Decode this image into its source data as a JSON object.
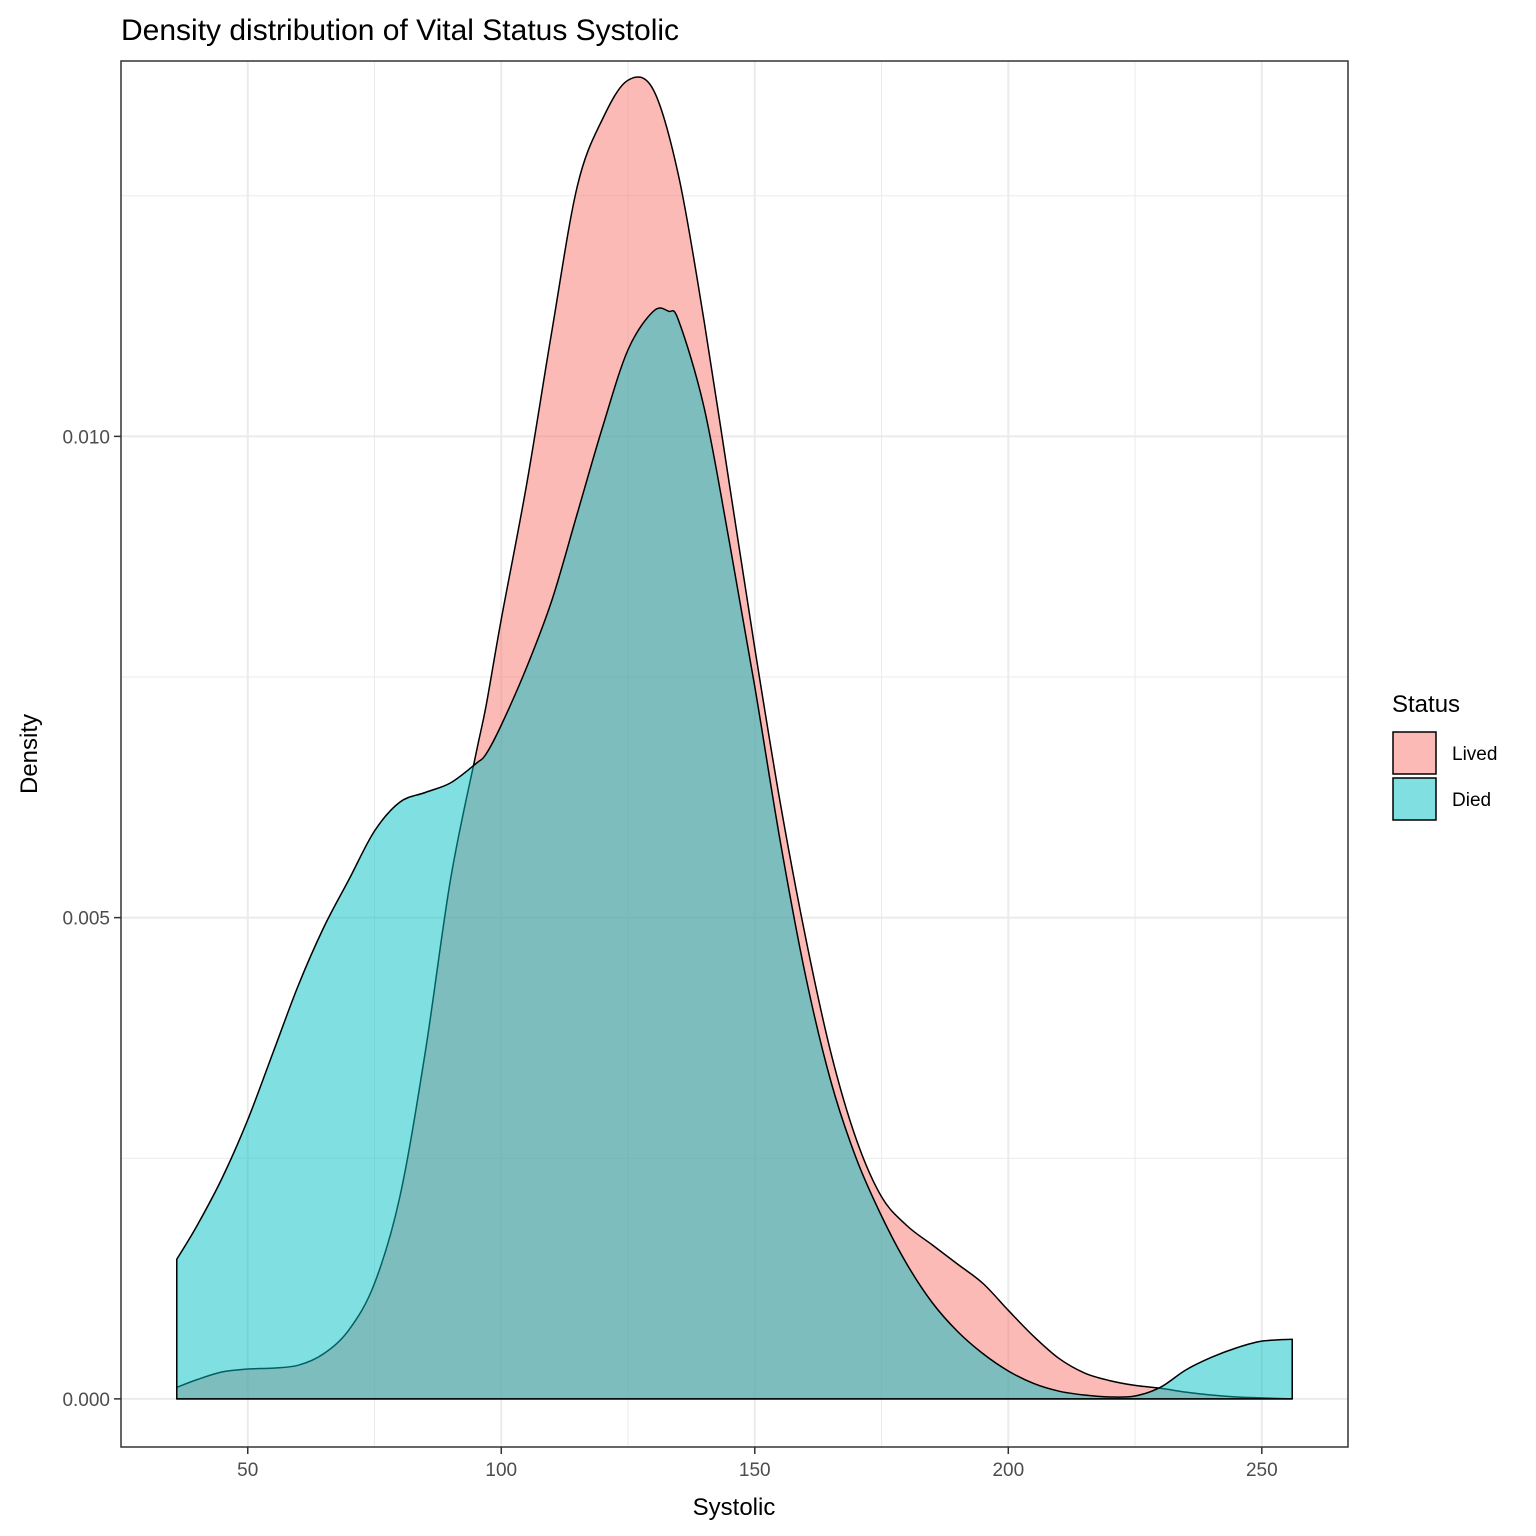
{
  "chart_data": {
    "type": "area",
    "title": "Density distribution of Vital Status Systolic",
    "xlabel": "Systolic",
    "ylabel": "Density",
    "xlim": [
      25,
      267
    ],
    "ylim": [
      -0.0005,
      0.0139
    ],
    "x_ticks": [
      50,
      100,
      150,
      200,
      250
    ],
    "x_tick_labels": [
      "50",
      "100",
      "150",
      "200",
      "250"
    ],
    "y_ticks": [
      0,
      0.005,
      0.01
    ],
    "y_tick_labels": [
      "0.000",
      "0.005",
      "0.010"
    ],
    "grid": true,
    "legend": {
      "title": "Status",
      "position": "right"
    },
    "series": [
      {
        "name": "Lived",
        "color": "#F8766D",
        "x": [
          36,
          40,
          45,
          50,
          55,
          60,
          65,
          70,
          75,
          80,
          85,
          90,
          95,
          97,
          100,
          105,
          110,
          115,
          120,
          125,
          130,
          135,
          140,
          145,
          150,
          155,
          160,
          165,
          170,
          175,
          180,
          185,
          190,
          195,
          200,
          205,
          210,
          215,
          220,
          225,
          230,
          235,
          240,
          245,
          250,
          256
        ],
        "y": [
          0.00012,
          0.0002,
          0.00028,
          0.00031,
          0.00032,
          0.00035,
          0.00047,
          0.00072,
          0.0012,
          0.0021,
          0.0036,
          0.0054,
          0.0067,
          0.0072,
          0.0081,
          0.0095,
          0.0111,
          0.0126,
          0.0133,
          0.0137,
          0.0136,
          0.0127,
          0.0112,
          0.0095,
          0.0078,
          0.0062,
          0.0048,
          0.0036,
          0.0027,
          0.0021,
          0.0018,
          0.0016,
          0.0014,
          0.0012,
          0.00092,
          0.00065,
          0.00042,
          0.00027,
          0.00019,
          0.00014,
          0.00011,
          7e-05,
          4e-05,
          2e-05,
          1e-05,
          0.0
        ]
      },
      {
        "name": "Died",
        "color": "#00BFC4",
        "x": [
          36,
          40,
          45,
          50,
          55,
          60,
          65,
          70,
          75,
          80,
          85,
          90,
          95,
          97,
          100,
          105,
          110,
          115,
          120,
          125,
          130,
          133,
          135,
          140,
          145,
          150,
          155,
          160,
          165,
          170,
          175,
          180,
          185,
          190,
          195,
          200,
          205,
          210,
          215,
          220,
          225,
          230,
          235,
          240,
          245,
          250,
          256
        ],
        "y": [
          0.00145,
          0.0018,
          0.0023,
          0.0029,
          0.0036,
          0.0043,
          0.0049,
          0.0054,
          0.0059,
          0.0062,
          0.0063,
          0.0064,
          0.0066,
          0.0067,
          0.007,
          0.0076,
          0.0083,
          0.0092,
          0.0101,
          0.0109,
          0.0113,
          0.0113,
          0.0112,
          0.0103,
          0.0089,
          0.0074,
          0.0058,
          0.0044,
          0.0033,
          0.0025,
          0.0019,
          0.0014,
          0.001,
          0.0007,
          0.00047,
          0.00029,
          0.00016,
          8e-05,
          4e-05,
          2e-05,
          3e-05,
          0.00012,
          0.0003,
          0.00043,
          0.00053,
          0.0006,
          0.00062
        ]
      }
    ]
  }
}
